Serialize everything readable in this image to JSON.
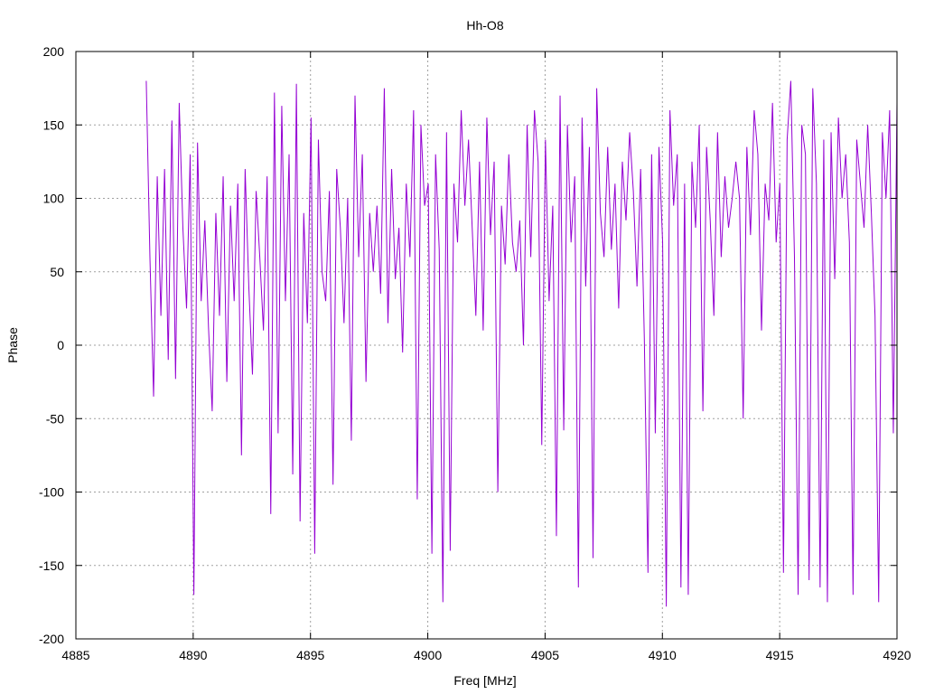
{
  "chart_data": {
    "type": "line",
    "title": "Hh-O8",
    "xlabel": "Freq [MHz]",
    "ylabel": "Phase",
    "xlim": [
      4885,
      4920
    ],
    "ylim": [
      -200,
      200
    ],
    "x_ticks": [
      4885,
      4890,
      4895,
      4900,
      4905,
      4910,
      4915,
      4920
    ],
    "y_ticks": [
      -200,
      -150,
      -100,
      -50,
      0,
      50,
      100,
      150,
      200
    ],
    "grid": true,
    "series": [
      {
        "color": "#9400D3",
        "x_start": 4888.0,
        "x_end": 4920.0,
        "values": [
          180,
          60,
          -35,
          115,
          20,
          120,
          -10,
          153,
          -23,
          165,
          80,
          25,
          130,
          -170,
          138,
          30,
          85,
          12,
          -45,
          90,
          20,
          115,
          -25,
          95,
          30,
          110,
          -75,
          120,
          40,
          -20,
          105,
          60,
          10,
          115,
          -115,
          172,
          -60,
          163,
          30,
          130,
          -88,
          178,
          -120,
          90,
          15,
          155,
          -142,
          140,
          50,
          30,
          105,
          -95,
          120,
          80,
          15,
          100,
          -65,
          170,
          60,
          130,
          -25,
          90,
          50,
          95,
          35,
          175,
          15,
          120,
          45,
          80,
          -5,
          110,
          60,
          160,
          -105,
          150,
          95,
          110,
          -142,
          130,
          65,
          -175,
          145,
          -140,
          110,
          70,
          160,
          95,
          140,
          80,
          20,
          125,
          10,
          155,
          75,
          125,
          -100,
          95,
          55,
          130,
          70,
          50,
          85,
          0,
          150,
          60,
          160,
          125,
          -68,
          140,
          30,
          95,
          -130,
          170,
          -58,
          150,
          70,
          115,
          -165,
          155,
          40,
          135,
          -145,
          175,
          90,
          60,
          135,
          65,
          110,
          25,
          125,
          85,
          145,
          105,
          40,
          120,
          5,
          -155,
          130,
          -60,
          135,
          70,
          -178,
          160,
          95,
          130,
          -165,
          110,
          -170,
          125,
          80,
          150,
          -45,
          135,
          85,
          20,
          145,
          60,
          115,
          80,
          100,
          125,
          100,
          -50,
          135,
          75,
          160,
          130,
          10,
          110,
          85,
          165,
          70,
          110,
          -155,
          140,
          180,
          60,
          -170,
          150,
          130,
          -160,
          175,
          110,
          -165,
          140,
          -175,
          145,
          45,
          155,
          100,
          130,
          70,
          -170,
          140,
          110,
          80,
          150,
          90,
          20,
          -175,
          145,
          100,
          160,
          -60,
          165
        ]
      }
    ]
  }
}
